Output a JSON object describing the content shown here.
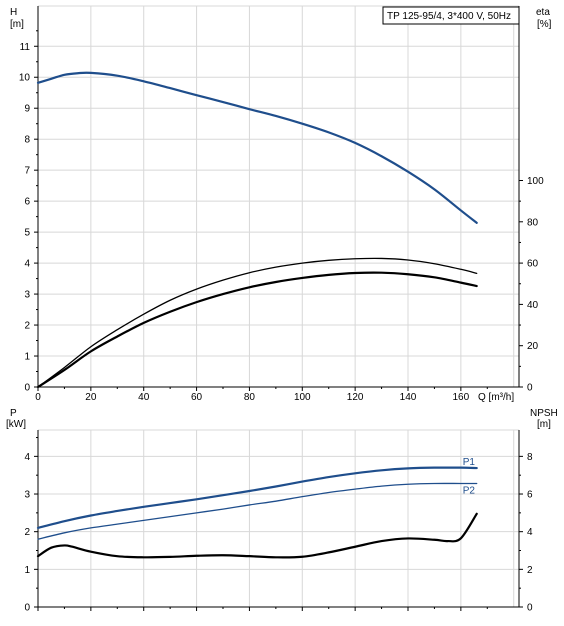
{
  "chart_data": [
    {
      "type": "line",
      "title": "TP 125-95/4, 3*400 V, 50Hz",
      "y_left": {
        "label": "H",
        "unit": "[m]",
        "ticks": [
          0,
          1,
          2,
          3,
          4,
          5,
          6,
          7,
          8,
          9,
          10,
          11
        ],
        "range": [
          0,
          12.3
        ]
      },
      "y_right": {
        "label": "eta",
        "unit": "[%]",
        "ticks": [
          0,
          20,
          40,
          60,
          80,
          100
        ],
        "range": [
          0,
          184.5
        ]
      },
      "x": {
        "label": "Q [m³/h]",
        "ticks": [
          0,
          20,
          40,
          60,
          80,
          100,
          120,
          140,
          160
        ],
        "range": [
          0,
          182
        ]
      },
      "grid": true,
      "series": [
        {
          "name": "",
          "axis": "left",
          "color": "#1f4e8c",
          "stroke": 2.2,
          "x": [
            0,
            5,
            10,
            15,
            20,
            30,
            40,
            50,
            60,
            70,
            80,
            90,
            100,
            110,
            120,
            130,
            140,
            150,
            160,
            166
          ],
          "y": [
            9.82,
            9.95,
            10.08,
            10.13,
            10.14,
            10.05,
            9.87,
            9.65,
            9.42,
            9.2,
            8.97,
            8.75,
            8.5,
            8.22,
            7.88,
            7.45,
            6.95,
            6.38,
            5.7,
            5.3
          ]
        },
        {
          "name": "",
          "axis": "left",
          "color": "#000000",
          "stroke": 1.3,
          "x": [
            0,
            10,
            20,
            30,
            40,
            50,
            60,
            70,
            80,
            90,
            100,
            110,
            120,
            130,
            140,
            150,
            160,
            166
          ],
          "y": [
            0,
            0.63,
            1.3,
            1.85,
            2.35,
            2.8,
            3.16,
            3.45,
            3.69,
            3.87,
            4.0,
            4.09,
            4.14,
            4.15,
            4.1,
            3.98,
            3.8,
            3.67
          ]
        },
        {
          "name": "",
          "axis": "left",
          "color": "#000000",
          "stroke": 2.2,
          "x": [
            0,
            10,
            20,
            30,
            40,
            50,
            60,
            70,
            80,
            90,
            100,
            110,
            120,
            130,
            140,
            150,
            160,
            166
          ],
          "y": [
            0,
            0.55,
            1.15,
            1.63,
            2.07,
            2.43,
            2.74,
            3.0,
            3.22,
            3.39,
            3.52,
            3.62,
            3.68,
            3.69,
            3.64,
            3.54,
            3.37,
            3.26
          ]
        }
      ]
    },
    {
      "type": "line",
      "y_left": {
        "label": "P",
        "unit": "[kW]",
        "ticks": [
          0,
          1,
          2,
          3,
          4
        ],
        "range": [
          0,
          4.7
        ]
      },
      "y_right": {
        "label": "NPSH",
        "unit": "[m]",
        "ticks": [
          0,
          2,
          4,
          6,
          8
        ],
        "range": [
          0,
          9.4
        ]
      },
      "x": {
        "ticks": [
          0,
          20,
          40,
          60,
          80,
          100,
          120,
          140,
          160
        ],
        "range": [
          0,
          182
        ]
      },
      "grid": true,
      "series": [
        {
          "name": "P1",
          "axis": "left",
          "color": "#1f4e8c",
          "stroke": 2.2,
          "x": [
            0,
            10,
            20,
            30,
            40,
            50,
            60,
            70,
            80,
            90,
            100,
            110,
            120,
            130,
            140,
            150,
            160,
            166
          ],
          "y": [
            2.1,
            2.28,
            2.43,
            2.55,
            2.66,
            2.76,
            2.86,
            2.97,
            3.08,
            3.2,
            3.33,
            3.45,
            3.55,
            3.63,
            3.68,
            3.7,
            3.7,
            3.69
          ]
        },
        {
          "name": "P2",
          "axis": "left",
          "color": "#1f4e8c",
          "stroke": 1.3,
          "x": [
            0,
            10,
            20,
            30,
            40,
            50,
            60,
            70,
            80,
            90,
            100,
            110,
            120,
            130,
            140,
            150,
            160,
            166
          ],
          "y": [
            1.8,
            1.97,
            2.1,
            2.2,
            2.3,
            2.4,
            2.5,
            2.6,
            2.71,
            2.81,
            2.93,
            3.04,
            3.13,
            3.21,
            3.26,
            3.28,
            3.28,
            3.28
          ]
        },
        {
          "name": "",
          "axis": "right",
          "color": "#000000",
          "stroke": 2.2,
          "x": [
            0,
            5,
            10,
            13,
            20,
            30,
            40,
            50,
            60,
            70,
            80,
            90,
            100,
            110,
            120,
            130,
            140,
            150,
            155,
            160,
            166
          ],
          "y": [
            2.7,
            3.15,
            3.27,
            3.2,
            2.94,
            2.7,
            2.64,
            2.66,
            2.72,
            2.75,
            2.7,
            2.64,
            2.67,
            2.9,
            3.2,
            3.5,
            3.64,
            3.57,
            3.5,
            3.65,
            4.95
          ]
        }
      ]
    }
  ]
}
